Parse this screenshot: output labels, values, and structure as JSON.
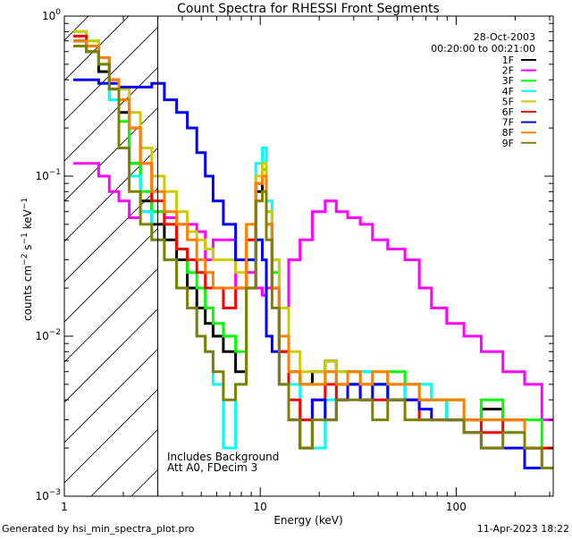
{
  "chart_data": {
    "type": "line",
    "title": "Count Spectra for RHESSI Front Segments",
    "xlabel": "Energy (keV)",
    "ylabel": "counts cm-2 s-1 keV-1",
    "xscale": "log",
    "yscale": "log",
    "xlim": [
      1,
      313
    ],
    "ylim": [
      0.001,
      1
    ],
    "x_ticks": [
      "1",
      "10",
      "100"
    ],
    "y_ticks": [
      "10-3",
      "10-2",
      "10-1",
      "100"
    ],
    "date": "28-Oct-2003",
    "time_range": "00:20:00 to 00:21:00",
    "annotations": [
      "Includes Background",
      "Att A0, FDecim 3"
    ],
    "shaded_region_keV": [
      1,
      3
    ],
    "legend_placement": "top-right",
    "x": [
      1.2,
      1.4,
      1.6,
      1.8,
      2.0,
      2.3,
      2.6,
      3.0,
      3.5,
      4,
      4.5,
      5,
      5.5,
      6,
      7,
      8,
      9,
      10,
      10.5,
      11,
      12,
      13,
      15,
      17,
      20,
      23,
      26,
      30,
      35,
      40,
      50,
      60,
      70,
      80,
      100,
      120,
      150,
      200,
      250,
      300
    ],
    "series": [
      {
        "name": "1F",
        "color": "#000000",
        "values": [
          0.7,
          0.6,
          0.45,
          0.35,
          0.25,
          0.12,
          0.07,
          0.05,
          0.04,
          0.03,
          0.02,
          0.015,
          0.012,
          0.01,
          0.008,
          0.006,
          0.02,
          0.08,
          0.1,
          0.05,
          0.02,
          0.008,
          0.006,
          0.005,
          0.006,
          0.007,
          0.005,
          0.006,
          0.005,
          0.005,
          0.004,
          0.005,
          0.004,
          0.004,
          0.003,
          0.003,
          0.0035,
          0.003,
          0.002,
          0.002
        ]
      },
      {
        "name": "2F",
        "color": "#ff00ff",
        "values": [
          0.12,
          0.12,
          0.1,
          0.08,
          0.07,
          0.055,
          0.06,
          0.06,
          0.055,
          0.05,
          0.05,
          0.045,
          0.03,
          0.04,
          0.04,
          0.02,
          0.025,
          0.02,
          0.018,
          0.02,
          0.02,
          0.015,
          0.03,
          0.04,
          0.06,
          0.07,
          0.06,
          0.055,
          0.05,
          0.04,
          0.035,
          0.03,
          0.02,
          0.015,
          0.012,
          0.01,
          0.008,
          0.006,
          0.005,
          0.003
        ]
      },
      {
        "name": "3F",
        "color": "#00ff00",
        "values": [
          0.8,
          0.7,
          0.5,
          0.3,
          0.22,
          0.12,
          0.08,
          0.06,
          0.05,
          0.035,
          0.025,
          0.02,
          0.015,
          0.012,
          0.01,
          0.008,
          0.03,
          0.09,
          0.11,
          0.06,
          0.025,
          0.01,
          0.006,
          0.005,
          0.005,
          0.006,
          0.006,
          0.005,
          0.006,
          0.005,
          0.006,
          0.005,
          0.005,
          0.004,
          0.004,
          0.003,
          0.004,
          0.003,
          0.003,
          0.002
        ]
      },
      {
        "name": "4F",
        "color": "#00ffff",
        "values": [
          0.75,
          0.65,
          0.5,
          0.3,
          0.15,
          0.1,
          0.06,
          0.04,
          0.03,
          0.02,
          0.015,
          0.01,
          0.008,
          0.005,
          0.002,
          0.005,
          0.03,
          0.12,
          0.15,
          0.07,
          0.03,
          0.01,
          0.005,
          0.003,
          0.002,
          0.004,
          0.006,
          0.005,
          0.006,
          0.004,
          0.005,
          0.004,
          0.005,
          0.004,
          0.003,
          0.003,
          0.003,
          0.0025,
          0.002,
          0.002
        ]
      },
      {
        "name": "5F",
        "color": "#cccc00",
        "values": [
          0.8,
          0.7,
          0.55,
          0.4,
          0.35,
          0.25,
          0.15,
          0.1,
          0.08,
          0.06,
          0.045,
          0.04,
          0.035,
          0.03,
          0.03,
          0.025,
          0.04,
          0.1,
          0.12,
          0.06,
          0.03,
          0.015,
          0.008,
          0.006,
          0.006,
          0.007,
          0.006,
          0.006,
          0.005,
          0.006,
          0.005,
          0.005,
          0.004,
          0.004,
          0.004,
          0.003,
          0.003,
          0.003,
          0.002,
          0.002
        ]
      },
      {
        "name": "6F",
        "color": "#ff0000",
        "values": [
          0.75,
          0.65,
          0.55,
          0.4,
          0.3,
          0.2,
          0.12,
          0.07,
          0.05,
          0.035,
          0.03,
          0.025,
          0.02,
          0.02,
          0.015,
          0.02,
          0.04,
          0.09,
          0.1,
          0.05,
          0.02,
          0.008,
          0.004,
          0.003,
          0.004,
          0.005,
          0.004,
          0.005,
          0.004,
          0.004,
          0.004,
          0.004,
          0.003,
          0.003,
          0.003,
          0.003,
          0.0025,
          0.003,
          0.002,
          0.002
        ]
      },
      {
        "name": "7F",
        "color": "#0000ff",
        "values": [
          0.4,
          0.4,
          0.38,
          0.38,
          0.36,
          0.36,
          0.36,
          0.38,
          0.3,
          0.25,
          0.2,
          0.14,
          0.1,
          0.07,
          0.05,
          0.03,
          0.03,
          0.04,
          0.03,
          0.01,
          0.008,
          0.005,
          0.003,
          0.002,
          0.004,
          0.003,
          0.004,
          0.005,
          0.004,
          0.005,
          0.004,
          0.004,
          0.0035,
          0.003,
          0.003,
          0.0025,
          0.002,
          0.002,
          0.0015,
          0.0015
        ]
      },
      {
        "name": "8F",
        "color": "#ff8000",
        "values": [
          0.7,
          0.65,
          0.55,
          0.4,
          0.3,
          0.2,
          0.12,
          0.08,
          0.06,
          0.05,
          0.04,
          0.03,
          0.025,
          0.02,
          0.02,
          0.02,
          0.05,
          0.09,
          0.1,
          0.05,
          0.02,
          0.01,
          0.006,
          0.005,
          0.005,
          0.006,
          0.005,
          0.006,
          0.005,
          0.006,
          0.005,
          0.005,
          0.004,
          0.004,
          0.004,
          0.003,
          0.003,
          0.003,
          0.002,
          0.0015
        ]
      },
      {
        "name": "9F",
        "color": "#808000",
        "values": [
          0.65,
          0.6,
          0.5,
          0.35,
          0.15,
          0.08,
          0.05,
          0.04,
          0.03,
          0.02,
          0.015,
          0.01,
          0.008,
          0.006,
          0.004,
          0.005,
          0.02,
          0.07,
          0.08,
          0.04,
          0.015,
          0.005,
          0.003,
          0.002,
          0.003,
          0.003,
          0.004,
          0.004,
          0.004,
          0.003,
          0.004,
          0.003,
          0.003,
          0.003,
          0.003,
          0.0025,
          0.002,
          0.0025,
          0.002,
          0.0015
        ]
      }
    ]
  },
  "footer": {
    "generated_by": "Generated by hsi_min_spectra_plot.pro",
    "timestamp": "11-Apr-2023 18:22"
  }
}
